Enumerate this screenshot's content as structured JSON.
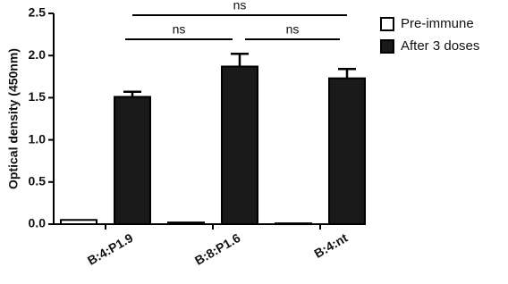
{
  "chart_data": {
    "type": "bar",
    "y_label": "Optical density (450nm)",
    "categories": [
      "B:4:P1.9",
      "B:8:P1.6",
      "B:4:nt"
    ],
    "series": [
      {
        "name": "Pre-immune",
        "color": "#ffffff",
        "values": [
          0.05,
          0.02,
          0.01
        ]
      },
      {
        "name": "After 3 doses",
        "color": "#1a1a1a",
        "values": [
          1.51,
          1.87,
          1.73
        ],
        "errors": [
          0.06,
          0.15,
          0.11
        ]
      }
    ],
    "ylim": [
      0,
      2.5
    ],
    "yticks": [
      {
        "value": 0,
        "label": "0.0"
      },
      0.5,
      {
        "value": 1,
        "label": "1.0"
      },
      1.5,
      {
        "value": 2,
        "label": "2.0"
      },
      2.5
    ],
    "comparisons": [
      {
        "label": "ns",
        "pair": [
          0,
          1
        ]
      },
      {
        "label": "ns",
        "pair": [
          1,
          2
        ]
      },
      {
        "label": "ns",
        "pair": [
          0,
          2
        ]
      }
    ],
    "legend": "top-right"
  }
}
